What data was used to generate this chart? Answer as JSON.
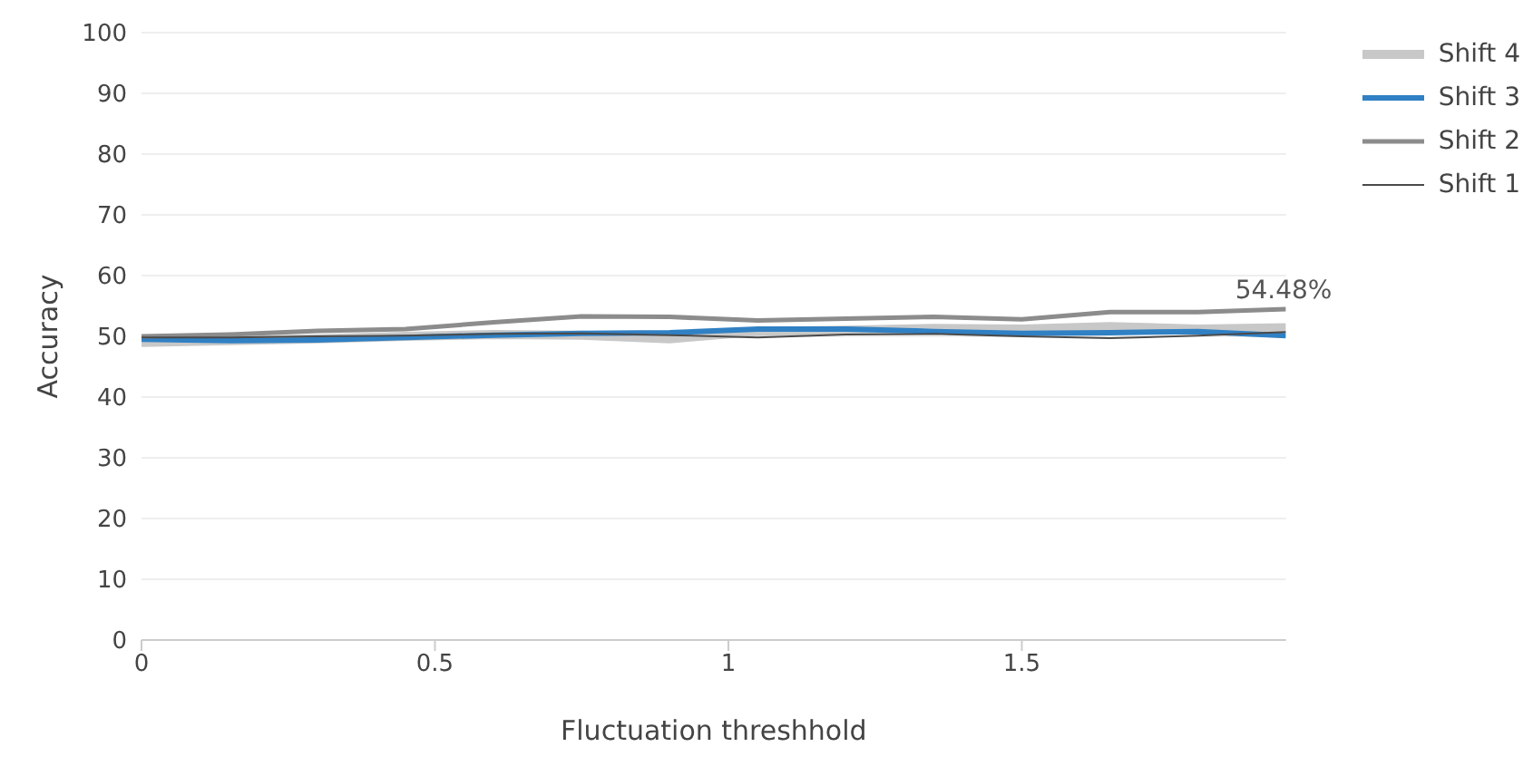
{
  "chart_data": {
    "type": "line",
    "xlabel": "Fluctuation threshhold",
    "ylabel": "Accuracy",
    "x": [
      0,
      0.15,
      0.3,
      0.45,
      0.6,
      0.75,
      0.9,
      1.05,
      1.2,
      1.35,
      1.5,
      1.65,
      1.8,
      1.95
    ],
    "series": [
      {
        "name": "Shift 4",
        "color": "#c8c8c8",
        "values": [
          49,
          49.3,
          49.6,
          50,
          50.3,
          50.2,
          49.6,
          50.8,
          51,
          51.3,
          51.2,
          51.6,
          51.2,
          51.4
        ]
      },
      {
        "name": "Shift 3",
        "color": "#3080c4",
        "values": [
          49.5,
          49.3,
          49.4,
          49.8,
          50.2,
          50.5,
          50.6,
          51.2,
          51.2,
          50.8,
          50.5,
          50.6,
          50.8,
          50.1
        ]
      },
      {
        "name": "Shift 2",
        "color": "#8c8c8c",
        "values": [
          50,
          50.3,
          50.9,
          51.2,
          52.3,
          53.3,
          53.2,
          52.6,
          52.9,
          53.2,
          52.8,
          54,
          54,
          54.48
        ]
      },
      {
        "name": "Shift 1",
        "color": "#4a4a4a",
        "values": [
          49.8,
          49.8,
          50,
          50.1,
          50.4,
          50.5,
          50.2,
          49.8,
          50.3,
          50.4,
          50,
          49.7,
          50.1,
          50.7
        ]
      }
    ],
    "xlim": [
      0,
      1.95
    ],
    "xticks": [
      0,
      0.5,
      1,
      1.5
    ],
    "ylim": [
      0,
      100
    ],
    "yticks": [
      0,
      10,
      20,
      30,
      40,
      50,
      60,
      70,
      80,
      90,
      100
    ],
    "grid": "y",
    "legend": "top right",
    "marker": "none",
    "annotations": [
      {
        "text": "54.48%",
        "x": 1.95,
        "y": 54.48
      }
    ]
  }
}
